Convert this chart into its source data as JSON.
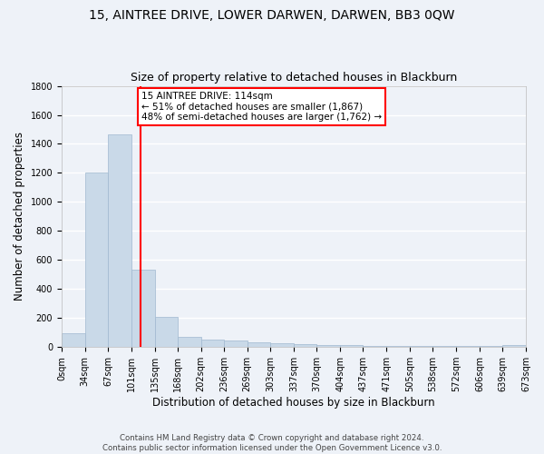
{
  "title": "15, AINTREE DRIVE, LOWER DARWEN, DARWEN, BB3 0QW",
  "subtitle": "Size of property relative to detached houses in Blackburn",
  "xlabel": "Distribution of detached houses by size in Blackburn",
  "ylabel": "Number of detached properties",
  "bin_edges": [
    0,
    34,
    67,
    101,
    135,
    168,
    202,
    236,
    269,
    303,
    337,
    370,
    404,
    437,
    471,
    505,
    538,
    572,
    606,
    639,
    673
  ],
  "bin_counts": [
    97,
    1205,
    1467,
    535,
    205,
    72,
    50,
    45,
    35,
    27,
    20,
    15,
    12,
    10,
    9,
    8,
    7,
    6,
    5,
    14
  ],
  "bar_color": "#c9d9e8",
  "bar_edge_color": "#a0b8d0",
  "vline_x": 114,
  "vline_color": "red",
  "annotation_text": "15 AINTREE DRIVE: 114sqm\n← 51% of detached houses are smaller (1,867)\n48% of semi-detached houses are larger (1,762) →",
  "annotation_box_color": "white",
  "annotation_box_edge_color": "red",
  "ylim": [
    0,
    1800
  ],
  "yticks": [
    0,
    200,
    400,
    600,
    800,
    1000,
    1200,
    1400,
    1600,
    1800
  ],
  "tick_labels": [
    "0sqm",
    "34sqm",
    "67sqm",
    "101sqm",
    "135sqm",
    "168sqm",
    "202sqm",
    "236sqm",
    "269sqm",
    "303sqm",
    "337sqm",
    "370sqm",
    "404sqm",
    "437sqm",
    "471sqm",
    "505sqm",
    "538sqm",
    "572sqm",
    "606sqm",
    "639sqm",
    "673sqm"
  ],
  "footer": "Contains HM Land Registry data © Crown copyright and database right 2024.\nContains public sector information licensed under the Open Government Licence v3.0.",
  "bg_color": "#eef2f8",
  "grid_color": "white",
  "title_fontsize": 10,
  "subtitle_fontsize": 9,
  "axis_label_fontsize": 8.5,
  "tick_fontsize": 7
}
